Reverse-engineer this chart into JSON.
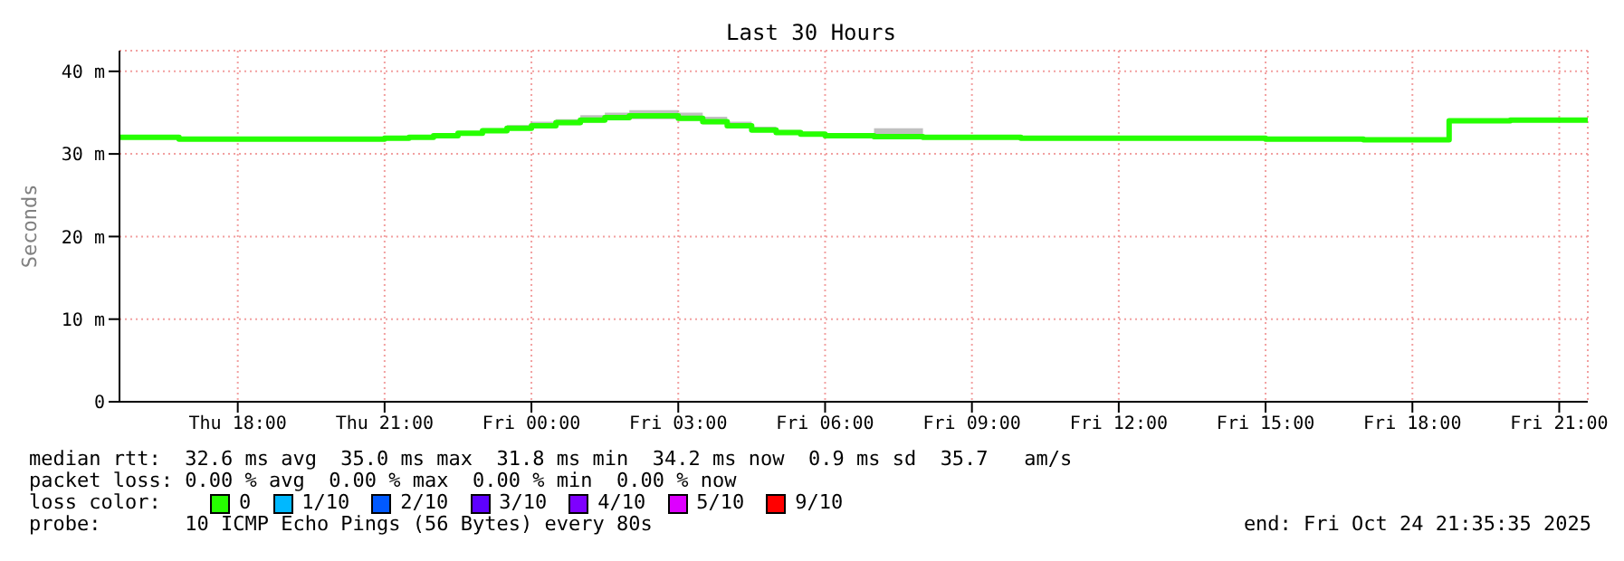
{
  "chart_data": {
    "type": "step",
    "title": "Last 30 Hours",
    "ylabel": "Seconds",
    "legend_title": "loss color:",
    "legend": "bottom",
    "grid": true,
    "x": [
      "2025-10-23T15:35",
      "2025-10-23T16:48",
      "2025-10-23T18:00",
      "2025-10-23T19:30",
      "2025-10-23T21:00",
      "2025-10-23T21:30",
      "2025-10-23T22:00",
      "2025-10-23T22:30",
      "2025-10-23T23:00",
      "2025-10-23T23:30",
      "2025-10-24T00:00",
      "2025-10-24T00:30",
      "2025-10-24T01:00",
      "2025-10-24T01:30",
      "2025-10-24T02:00",
      "2025-10-24T02:30",
      "2025-10-24T03:00",
      "2025-10-24T03:30",
      "2025-10-24T04:00",
      "2025-10-24T04:30",
      "2025-10-24T05:00",
      "2025-10-24T05:30",
      "2025-10-24T06:00",
      "2025-10-24T07:00",
      "2025-10-24T08:00",
      "2025-10-24T09:00",
      "2025-10-24T10:00",
      "2025-10-24T12:00",
      "2025-10-24T14:00",
      "2025-10-24T15:00",
      "2025-10-24T16:00",
      "2025-10-24T17:00",
      "2025-10-24T18:00",
      "2025-10-24T18:45",
      "2025-10-24T20:00",
      "2025-10-24T21:35"
    ],
    "series": [
      {
        "name": "0",
        "color": "#26ff00",
        "values": [
          32.0,
          31.8,
          31.8,
          31.8,
          31.9,
          32.0,
          32.2,
          32.5,
          32.8,
          33.1,
          33.4,
          33.8,
          34.1,
          34.4,
          34.6,
          34.6,
          34.3,
          33.9,
          33.4,
          32.9,
          32.6,
          32.4,
          32.2,
          32.1,
          32.0,
          32.0,
          31.9,
          31.9,
          31.9,
          31.8,
          31.8,
          31.7,
          31.7,
          34.0,
          34.1,
          34.1
        ],
        "lower": [
          31.9,
          31.7,
          31.7,
          31.7,
          31.8,
          31.9,
          32.1,
          32.3,
          32.6,
          32.9,
          33.2,
          33.5,
          33.8,
          34.1,
          34.2,
          34.2,
          34.0,
          33.6,
          33.2,
          32.7,
          32.5,
          32.3,
          32.1,
          32.0,
          31.9,
          31.9,
          31.8,
          31.8,
          31.8,
          31.7,
          31.7,
          31.6,
          31.6,
          33.9,
          34.0,
          34.0
        ],
        "upper": [
          32.1,
          31.9,
          31.9,
          31.9,
          32.0,
          32.1,
          32.3,
          32.7,
          33.1,
          33.5,
          33.9,
          34.2,
          34.7,
          35.0,
          35.3,
          35.3,
          35.0,
          34.5,
          33.9,
          33.3,
          32.9,
          32.7,
          32.5,
          33.1,
          32.2,
          32.2,
          32.0,
          32.0,
          32.0,
          31.9,
          31.9,
          31.8,
          31.8,
          34.1,
          34.2,
          34.2
        ]
      },
      {
        "name": "1/10",
        "color": "#00b8ff",
        "values": [
          null,
          null,
          null,
          null,
          null,
          null,
          null,
          null,
          null,
          null,
          null,
          null,
          null,
          null,
          null,
          null,
          null,
          null,
          null,
          null,
          null,
          null,
          null,
          null,
          null,
          null,
          null,
          null,
          null,
          null,
          null,
          null,
          null,
          null,
          null,
          null
        ]
      },
      {
        "name": "2/10",
        "color": "#0059ff",
        "values": [
          null,
          null,
          null,
          null,
          null,
          null,
          null,
          null,
          null,
          null,
          null,
          null,
          null,
          null,
          null,
          null,
          null,
          null,
          null,
          null,
          null,
          null,
          null,
          null,
          null,
          null,
          null,
          null,
          null,
          null,
          null,
          null,
          null,
          null,
          null,
          null
        ]
      },
      {
        "name": "3/10",
        "color": "#5e00ff",
        "values": [
          null,
          null,
          null,
          null,
          null,
          null,
          null,
          null,
          null,
          null,
          null,
          null,
          null,
          null,
          null,
          null,
          null,
          null,
          null,
          null,
          null,
          null,
          null,
          null,
          null,
          null,
          null,
          null,
          null,
          null,
          null,
          null,
          null,
          null,
          null,
          null
        ]
      },
      {
        "name": "4/10",
        "color": "#7e00ff",
        "values": [
          null,
          null,
          null,
          null,
          null,
          null,
          null,
          null,
          null,
          null,
          null,
          null,
          null,
          null,
          null,
          null,
          null,
          null,
          null,
          null,
          null,
          null,
          null,
          null,
          null,
          null,
          null,
          null,
          null,
          null,
          null,
          null,
          null,
          null,
          null,
          null
        ]
      },
      {
        "name": "5/10",
        "color": "#dd00ff",
        "values": [
          null,
          null,
          null,
          null,
          null,
          null,
          null,
          null,
          null,
          null,
          null,
          null,
          null,
          null,
          null,
          null,
          null,
          null,
          null,
          null,
          null,
          null,
          null,
          null,
          null,
          null,
          null,
          null,
          null,
          null,
          null,
          null,
          null,
          null,
          null,
          null
        ]
      },
      {
        "name": "9/10",
        "color": "#ff0000",
        "values": [
          null,
          null,
          null,
          null,
          null,
          null,
          null,
          null,
          null,
          null,
          null,
          null,
          null,
          null,
          null,
          null,
          null,
          null,
          null,
          null,
          null,
          null,
          null,
          null,
          null,
          null,
          null,
          null,
          null,
          null,
          null,
          null,
          null,
          null,
          null,
          null
        ]
      }
    ],
    "xlim": [
      "2025-10-23T15:35",
      "2025-10-24T21:35"
    ],
    "xticks": [
      {
        "value": "2025-10-23T18:00",
        "label": "Thu 18:00"
      },
      {
        "value": "2025-10-23T21:00",
        "label": "Thu 21:00"
      },
      {
        "value": "2025-10-24T00:00",
        "label": "Fri 00:00"
      },
      {
        "value": "2025-10-24T03:00",
        "label": "Fri 03:00"
      },
      {
        "value": "2025-10-24T06:00",
        "label": "Fri 06:00"
      },
      {
        "value": "2025-10-24T09:00",
        "label": "Fri 09:00"
      },
      {
        "value": "2025-10-24T12:00",
        "label": "Fri 12:00"
      },
      {
        "value": "2025-10-24T15:00",
        "label": "Fri 15:00"
      },
      {
        "value": "2025-10-24T18:00",
        "label": "Fri 18:00"
      },
      {
        "value": "2025-10-24T21:00",
        "label": "Fri 21:00"
      }
    ],
    "ylim": [
      0,
      42.5
    ],
    "yticks": [
      0,
      {
        "value": 10,
        "label": "10 m"
      },
      {
        "value": 20,
        "label": "20 m"
      },
      {
        "value": 30,
        "label": "30 m"
      },
      {
        "value": 40,
        "label": "40 m"
      }
    ],
    "annotations": [
      "median rtt:  32.6 ms avg  35.0 ms max  31.8 ms min  34.2 ms now  0.9 ms sd  35.7   am/s",
      "packet loss: 0.00 % avg  0.00 % max  0.00 % min  0.00 % now",
      "probe:       10 ICMP Echo Pings (56 Bytes) every 80s",
      "end: Fri Oct 24 21:35:35 2025"
    ]
  }
}
